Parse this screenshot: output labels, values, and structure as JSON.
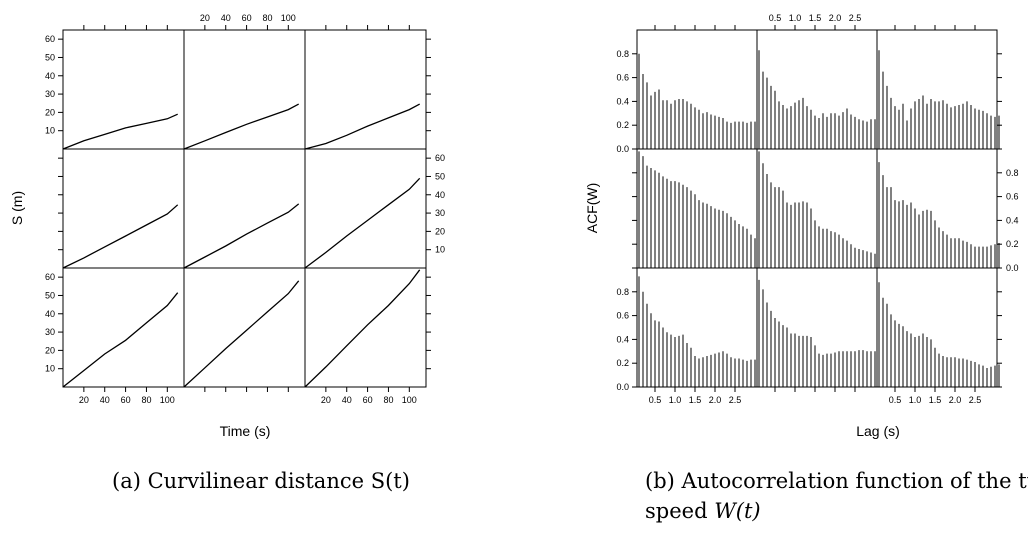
{
  "figure_a": {
    "caption_tag": "(a)",
    "caption_text": "Curvilinear distance S(t)"
  },
  "figure_b": {
    "caption_tag": "(b)",
    "caption_line1": "Autocorrelation function of the turni",
    "caption_line2_prefix": "speed ",
    "caption_line2_math": "W(t)"
  },
  "chart_data": [
    {
      "type": "line",
      "xlabel": "Time (s)",
      "ylabel": "S (m)",
      "xlim": [
        0,
        116
      ],
      "ylim": [
        0,
        65
      ],
      "x_ticks": [
        20,
        40,
        60,
        80,
        100
      ],
      "y_ticks": [
        10,
        20,
        30,
        40,
        50,
        60
      ],
      "grid": false,
      "layout": "3x3 trellis panels",
      "series": [
        {
          "values": [
            [
              0,
              0
            ],
            [
              20,
              4.5
            ],
            [
              40,
              8
            ],
            [
              60,
              11.5
            ],
            [
              80,
              14
            ],
            [
              100,
              16.5
            ],
            [
              110,
              19
            ]
          ]
        },
        {
          "values": [
            [
              0,
              0
            ],
            [
              20,
              4.5
            ],
            [
              40,
              9
            ],
            [
              60,
              13.5
            ],
            [
              80,
              17.5
            ],
            [
              100,
              21.5
            ],
            [
              110,
              24.5
            ]
          ]
        },
        {
          "values": [
            [
              0,
              0
            ],
            [
              20,
              3
            ],
            [
              40,
              7.5
            ],
            [
              60,
              12.5
            ],
            [
              80,
              17
            ],
            [
              100,
              21.5
            ],
            [
              110,
              24.5
            ]
          ]
        },
        {
          "values": [
            [
              0,
              0
            ],
            [
              20,
              5.5
            ],
            [
              40,
              11.5
            ],
            [
              60,
              17.5
            ],
            [
              80,
              23.5
            ],
            [
              100,
              29.5
            ],
            [
              110,
              34.5
            ]
          ]
        },
        {
          "values": [
            [
              0,
              0
            ],
            [
              20,
              6
            ],
            [
              40,
              12
            ],
            [
              60,
              18.5
            ],
            [
              80,
              24.5
            ],
            [
              100,
              30.5
            ],
            [
              110,
              35
            ]
          ]
        },
        {
          "values": [
            [
              0,
              0
            ],
            [
              20,
              8.5
            ],
            [
              40,
              17.5
            ],
            [
              60,
              26
            ],
            [
              80,
              34.5
            ],
            [
              100,
              43
            ],
            [
              110,
              49
            ]
          ]
        },
        {
          "values": [
            [
              0,
              0
            ],
            [
              20,
              9
            ],
            [
              40,
              18
            ],
            [
              60,
              25.5
            ],
            [
              80,
              35
            ],
            [
              100,
              44.5
            ],
            [
              110,
              51.5
            ]
          ]
        },
        {
          "values": [
            [
              0,
              0
            ],
            [
              20,
              10.5
            ],
            [
              40,
              21
            ],
            [
              60,
              31
            ],
            [
              80,
              41
            ],
            [
              100,
              51
            ],
            [
              110,
              58
            ]
          ]
        },
        {
          "values": [
            [
              0,
              0
            ],
            [
              20,
              11
            ],
            [
              40,
              22.5
            ],
            [
              60,
              34
            ],
            [
              80,
              44.5
            ],
            [
              100,
              56.5
            ],
            [
              110,
              64
            ]
          ]
        }
      ]
    },
    {
      "type": "bar",
      "xlabel": "Lag (s)",
      "ylabel": "ACF(W)",
      "xlim": [
        0.05,
        3.05
      ],
      "ylim": [
        0,
        1
      ],
      "x_ticks": [
        0.5,
        1.0,
        1.5,
        2.0,
        2.5
      ],
      "x_tick_labels": [
        "0.5",
        "1.0",
        "1.5",
        "2.0",
        "2.5"
      ],
      "y_ticks": [
        0.0,
        0.2,
        0.4,
        0.6,
        0.8
      ],
      "y_tick_labels": [
        "0.0",
        "0.2",
        "0.4",
        "0.6",
        "0.8"
      ],
      "grid": false,
      "layout": "3x3 trellis panels",
      "lag_start": 0.1,
      "lag_step": 0.1,
      "series": [
        {
          "values": [
            0.8,
            0.63,
            0.56,
            0.45,
            0.48,
            0.5,
            0.41,
            0.41,
            0.38,
            0.41,
            0.42,
            0.42,
            0.4,
            0.38,
            0.35,
            0.33,
            0.3,
            0.31,
            0.29,
            0.28,
            0.27,
            0.26,
            0.23,
            0.22,
            0.23,
            0.23,
            0.23,
            0.22,
            0.23,
            0.23,
            0.23
          ]
        },
        {
          "values": [
            0.83,
            0.65,
            0.6,
            0.53,
            0.49,
            0.4,
            0.37,
            0.34,
            0.36,
            0.39,
            0.41,
            0.43,
            0.36,
            0.33,
            0.28,
            0.26,
            0.3,
            0.27,
            0.3,
            0.3,
            0.28,
            0.31,
            0.34,
            0.29,
            0.27,
            0.25,
            0.24,
            0.23,
            0.25,
            0.25,
            0.27
          ]
        },
        {
          "values": [
            0.83,
            0.65,
            0.53,
            0.43,
            0.36,
            0.33,
            0.38,
            0.24,
            0.34,
            0.4,
            0.42,
            0.45,
            0.38,
            0.42,
            0.4,
            0.4,
            0.41,
            0.38,
            0.35,
            0.36,
            0.37,
            0.38,
            0.4,
            0.37,
            0.34,
            0.33,
            0.32,
            0.3,
            0.28,
            0.27,
            0.28
          ]
        },
        {
          "values": [
            0.98,
            0.94,
            0.86,
            0.84,
            0.82,
            0.8,
            0.77,
            0.75,
            0.73,
            0.73,
            0.72,
            0.7,
            0.68,
            0.65,
            0.62,
            0.57,
            0.55,
            0.54,
            0.52,
            0.5,
            0.49,
            0.48,
            0.46,
            0.43,
            0.4,
            0.37,
            0.35,
            0.33,
            0.28,
            0.25,
            0.23
          ]
        },
        {
          "values": [
            0.98,
            0.88,
            0.79,
            0.72,
            0.68,
            0.68,
            0.65,
            0.55,
            0.53,
            0.55,
            0.55,
            0.56,
            0.55,
            0.5,
            0.4,
            0.35,
            0.33,
            0.33,
            0.31,
            0.3,
            0.28,
            0.25,
            0.23,
            0.2,
            0.17,
            0.16,
            0.15,
            0.14,
            0.13,
            0.12,
            0.1
          ]
        },
        {
          "values": [
            0.89,
            0.78,
            0.68,
            0.68,
            0.57,
            0.56,
            0.57,
            0.53,
            0.55,
            0.5,
            0.45,
            0.48,
            0.49,
            0.48,
            0.4,
            0.34,
            0.31,
            0.28,
            0.25,
            0.25,
            0.25,
            0.23,
            0.22,
            0.2,
            0.18,
            0.18,
            0.18,
            0.18,
            0.19,
            0.2,
            0.21
          ]
        },
        {
          "values": [
            0.93,
            0.8,
            0.7,
            0.62,
            0.56,
            0.55,
            0.5,
            0.46,
            0.44,
            0.42,
            0.43,
            0.44,
            0.37,
            0.33,
            0.26,
            0.24,
            0.25,
            0.26,
            0.27,
            0.28,
            0.29,
            0.3,
            0.28,
            0.25,
            0.24,
            0.24,
            0.23,
            0.22,
            0.23,
            0.23,
            0.24
          ]
        },
        {
          "values": [
            0.9,
            0.82,
            0.71,
            0.64,
            0.58,
            0.55,
            0.52,
            0.5,
            0.45,
            0.45,
            0.43,
            0.43,
            0.43,
            0.42,
            0.35,
            0.28,
            0.27,
            0.28,
            0.28,
            0.29,
            0.3,
            0.3,
            0.3,
            0.3,
            0.3,
            0.31,
            0.31,
            0.3,
            0.3,
            0.3,
            0.3
          ]
        },
        {
          "values": [
            0.88,
            0.75,
            0.7,
            0.61,
            0.56,
            0.53,
            0.51,
            0.47,
            0.45,
            0.42,
            0.43,
            0.45,
            0.42,
            0.4,
            0.33,
            0.28,
            0.26,
            0.25,
            0.25,
            0.25,
            0.24,
            0.24,
            0.23,
            0.22,
            0.21,
            0.19,
            0.18,
            0.16,
            0.17,
            0.18,
            0.19
          ]
        }
      ]
    }
  ]
}
